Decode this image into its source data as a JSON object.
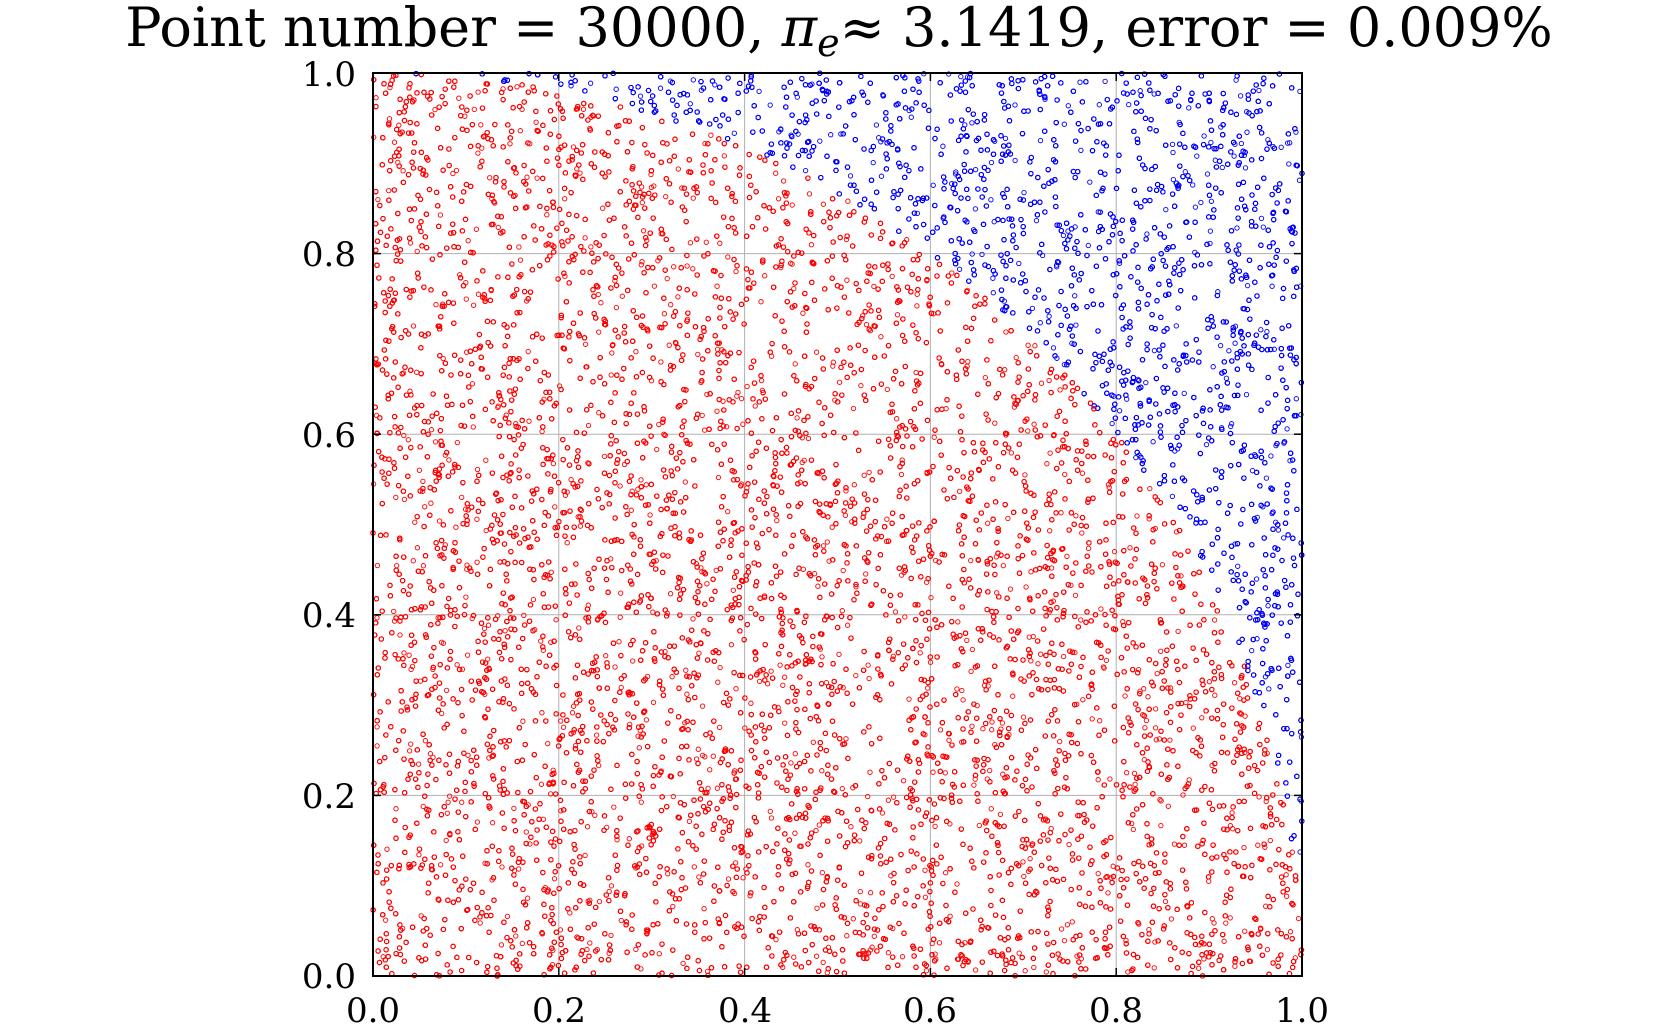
{
  "chart_data": {
    "type": "scatter",
    "title": {
      "prefix": "Point number = ",
      "point_count": "30000",
      "pi_symbol": "π",
      "pi_subscript": "e",
      "approx": "≈",
      "pi_value": "3.1419",
      "error_label": ", error = ",
      "error_value": "0.009%"
    },
    "xlabel": "",
    "ylabel": "",
    "xlim": [
      0.0,
      1.0
    ],
    "ylim": [
      0.0,
      1.0
    ],
    "x_ticks": [
      "0.0",
      "0.2",
      "0.4",
      "0.6",
      "0.8",
      "1.0"
    ],
    "y_ticks": [
      "0.0",
      "0.2",
      "0.4",
      "0.6",
      "0.8",
      "1.0"
    ],
    "grid": true,
    "series": [
      {
        "color": "#ff0000",
        "marker": "hollow-circle",
        "rule": "x^2 + y^2 <= 1"
      },
      {
        "color": "#0000ff",
        "marker": "hollow-circle",
        "rule": "x^2 + y^2 > 1"
      }
    ],
    "point_count": 30000
  }
}
